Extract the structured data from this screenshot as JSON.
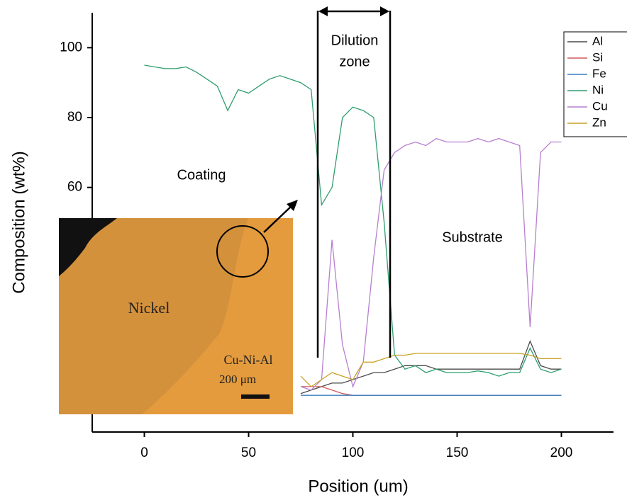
{
  "chart_data": {
    "type": "line",
    "xlabel": "Position (um)",
    "ylabel": "Composition (wt%)",
    "xlim": [
      -25,
      225
    ],
    "xticks": [
      0,
      50,
      100,
      150,
      200
    ],
    "ylim": [
      -10,
      110
    ],
    "yticks": [
      60,
      80,
      100
    ],
    "legend": "top-right",
    "annotations": [
      "Dilution",
      "zone",
      "Coating",
      "Substrate"
    ],
    "inset_labels": [
      "Nickel",
      "Cu-Ni-Al",
      "200 μm"
    ],
    "x": [
      0,
      5,
      10,
      15,
      20,
      25,
      30,
      35,
      40,
      45,
      50,
      55,
      60,
      65,
      70,
      75,
      80,
      85,
      90,
      95,
      100,
      105,
      110,
      115,
      120,
      125,
      130,
      135,
      140,
      145,
      150,
      155,
      160,
      165,
      170,
      175,
      180,
      185,
      190,
      195,
      200
    ],
    "series": [
      {
        "name": "Al",
        "color": "#4a4a4a",
        "values": [
          null,
          null,
          null,
          null,
          null,
          null,
          null,
          null,
          null,
          null,
          null,
          null,
          null,
          null,
          null,
          1,
          2,
          3,
          4,
          4,
          5,
          6,
          7,
          7,
          8,
          9,
          9,
          9,
          8,
          8,
          8,
          8,
          8,
          8,
          8,
          8,
          8,
          16,
          9,
          8,
          8
        ]
      },
      {
        "name": "Si",
        "color": "#d05a5a",
        "values": [
          null,
          null,
          null,
          null,
          null,
          null,
          null,
          null,
          null,
          null,
          null,
          null,
          null,
          null,
          null,
          3,
          3,
          3,
          2,
          1,
          0.5,
          0.5,
          0.5,
          0.5,
          0.5,
          0.5,
          0.5,
          0.5,
          0.5,
          0.5,
          0.5,
          0.5,
          0.5,
          0.5,
          0.5,
          0.5,
          0.5,
          0.5,
          0.5,
          0.5,
          0.5
        ]
      },
      {
        "name": "Fe",
        "color": "#3a7fc0",
        "values": [
          null,
          null,
          null,
          null,
          null,
          null,
          null,
          null,
          null,
          null,
          null,
          null,
          null,
          null,
          null,
          0.5,
          0.5,
          0.5,
          0.5,
          0.5,
          0.5,
          0.5,
          0.5,
          0.5,
          0.5,
          0.5,
          0.5,
          0.5,
          0.5,
          0.5,
          0.5,
          0.5,
          0.5,
          0.5,
          0.5,
          0.5,
          0.5,
          0.5,
          0.5,
          0.5,
          0.5
        ]
      },
      {
        "name": "Ni",
        "color": "#2e9e6e",
        "values": [
          95,
          94.5,
          94,
          94,
          94.5,
          93,
          91,
          89,
          82,
          88,
          87,
          89,
          91,
          92,
          91,
          90,
          88,
          55,
          60,
          80,
          83,
          82,
          80,
          50,
          12,
          8,
          9,
          7,
          8,
          7,
          7,
          7,
          7.5,
          7,
          6,
          7,
          7,
          14,
          8,
          7,
          8
        ]
      },
      {
        "name": "Cu",
        "color": "#b77fd0",
        "values": [
          null,
          null,
          null,
          null,
          null,
          null,
          null,
          null,
          null,
          null,
          null,
          null,
          null,
          null,
          null,
          3,
          2,
          5,
          45,
          15,
          3,
          10,
          40,
          65,
          70,
          72,
          73,
          72,
          74,
          73,
          73,
          73,
          74,
          73,
          74,
          73,
          72,
          20,
          70,
          73,
          73
        ]
      },
      {
        "name": "Zn",
        "color": "#c9a227",
        "values": [
          null,
          null,
          null,
          null,
          null,
          null,
          null,
          null,
          null,
          null,
          null,
          null,
          null,
          null,
          null,
          6,
          3,
          5,
          7,
          6,
          5,
          10,
          10,
          11,
          12,
          12,
          12.5,
          12.5,
          12.5,
          12.5,
          12.5,
          12.5,
          12.5,
          12.5,
          12.5,
          12.5,
          12.5,
          12,
          11,
          11,
          11
        ]
      }
    ]
  }
}
